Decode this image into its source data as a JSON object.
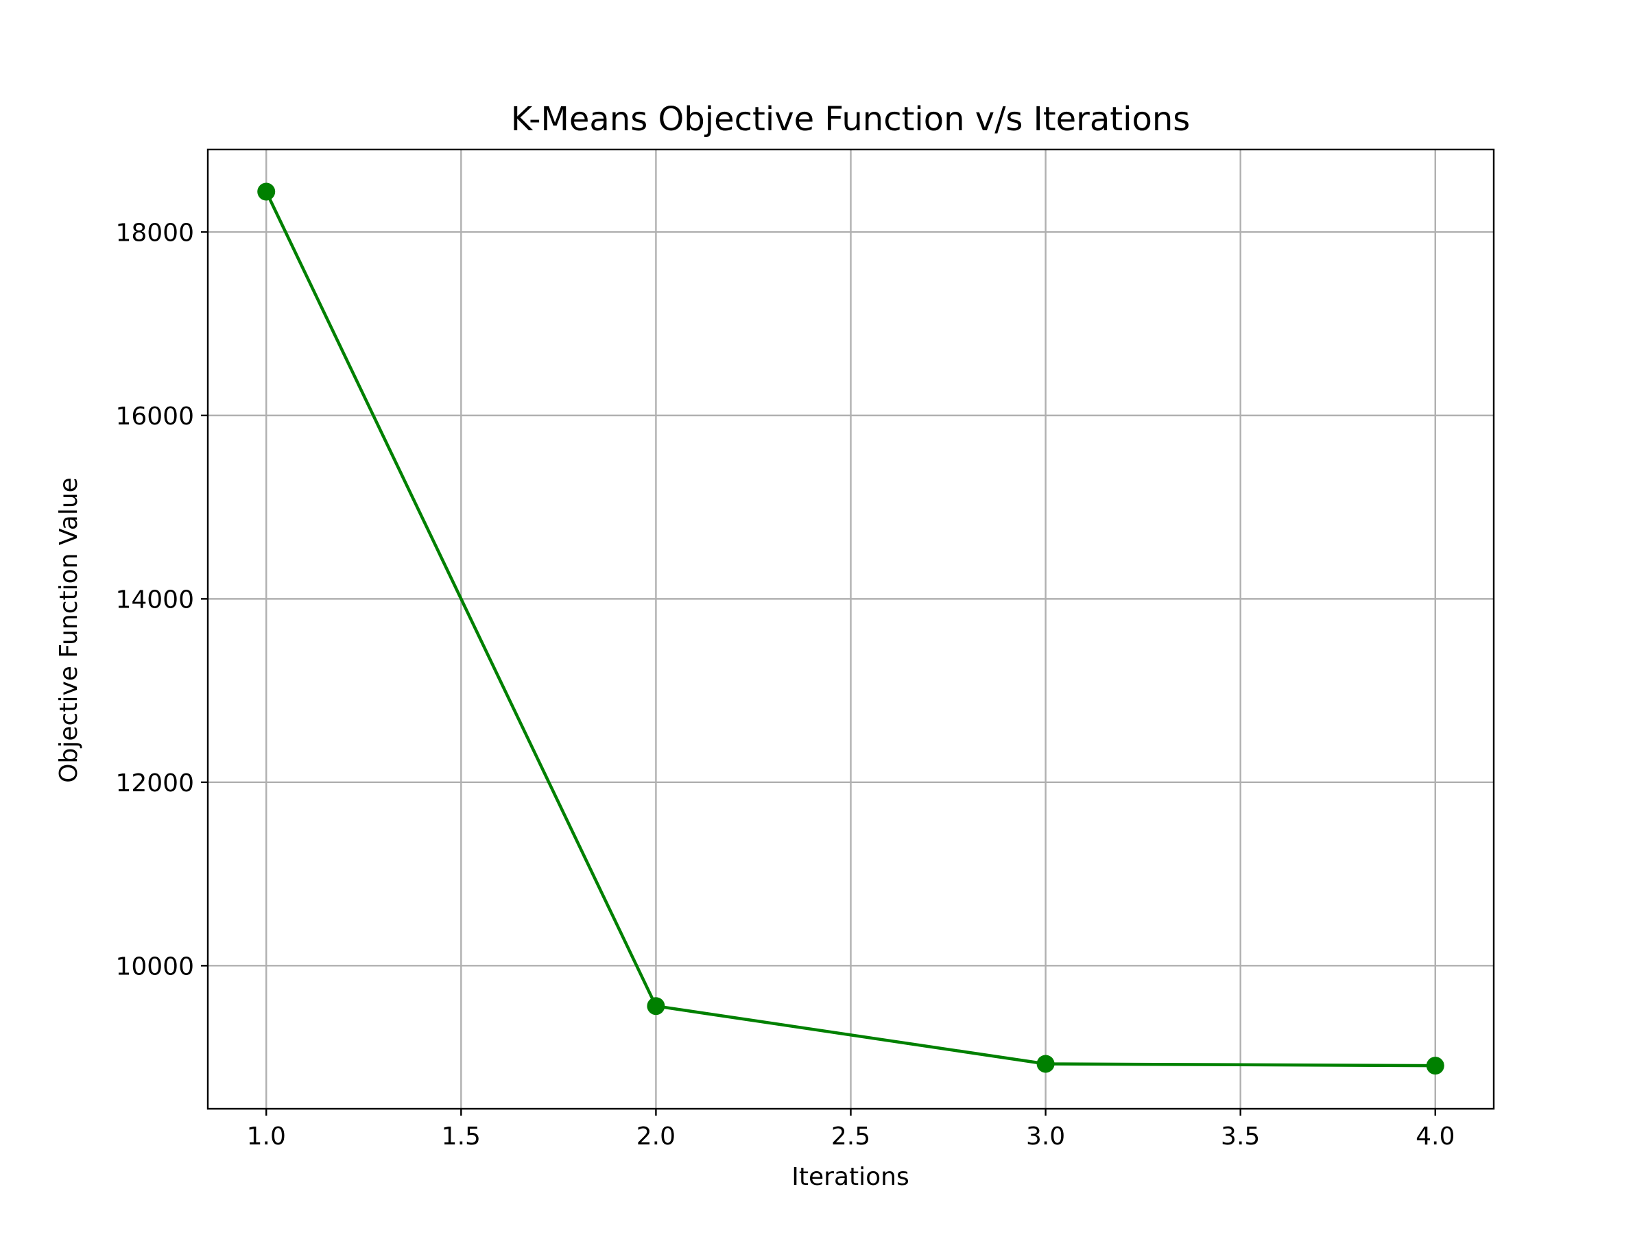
{
  "chart_data": {
    "type": "line",
    "title": "K-Means Objective Function v/s Iterations",
    "xlabel": "Iterations",
    "ylabel": "Objective Function Value",
    "xlim": [
      0.85,
      4.15
    ],
    "ylim": [
      8440,
      18900
    ],
    "x_ticks": [
      1.0,
      1.5,
      2.0,
      2.5,
      3.0,
      3.5,
      4.0
    ],
    "x_tick_labels": [
      "1.0",
      "1.5",
      "2.0",
      "2.5",
      "3.0",
      "3.5",
      "4.0"
    ],
    "y_ticks": [
      10000,
      12000,
      14000,
      16000,
      18000
    ],
    "y_tick_labels": [
      "10000",
      "12000",
      "14000",
      "16000",
      "18000"
    ],
    "grid": true,
    "series": [
      {
        "color": "#008000",
        "marker": "circle",
        "x": [
          1,
          2,
          3,
          4
        ],
        "y": [
          18440,
          9560,
          8930,
          8910
        ]
      }
    ]
  }
}
